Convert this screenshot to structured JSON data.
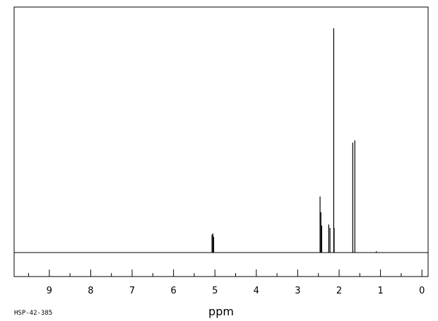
{
  "chart_data": {
    "type": "line",
    "xlabel": "ppm",
    "x_reversed": true,
    "xlim": [
      9.85,
      -0.15
    ],
    "ylim": [
      -0.11,
      1.0
    ],
    "x_ticks": [
      "9",
      "8",
      "7",
      "6",
      "5",
      "4",
      "3",
      "2",
      "1",
      "0"
    ],
    "x_tick_values": [
      9,
      8,
      7,
      6,
      5,
      4,
      3,
      2,
      1,
      0
    ],
    "grid": false,
    "peaks": [
      {
        "ppm": 5.07,
        "intensity": 0.08
      },
      {
        "ppm": 5.05,
        "intensity": 0.085
      },
      {
        "ppm": 5.03,
        "intensity": 0.07
      },
      {
        "ppm": 2.46,
        "intensity": 0.25
      },
      {
        "ppm": 2.44,
        "intensity": 0.18
      },
      {
        "ppm": 2.42,
        "intensity": 0.12
      },
      {
        "ppm": 2.25,
        "intensity": 0.125
      },
      {
        "ppm": 2.22,
        "intensity": 0.11
      },
      {
        "ppm": 2.13,
        "intensity": 1.0
      },
      {
        "ppm": 2.12,
        "intensity": 0.11
      },
      {
        "ppm": 1.67,
        "intensity": 0.49
      },
      {
        "ppm": 1.62,
        "intensity": 0.5
      },
      {
        "ppm": 1.1,
        "intensity": 0.006
      }
    ]
  },
  "footer": {
    "code": "HSP-42-385"
  }
}
